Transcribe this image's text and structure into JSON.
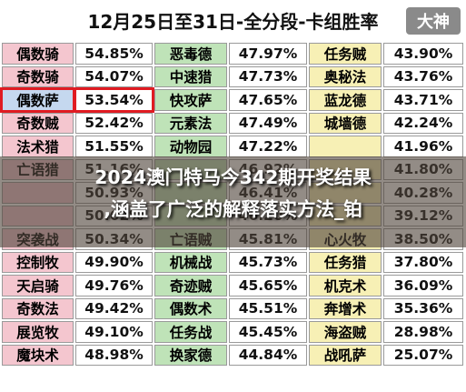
{
  "title": "12月25日至31日-全分段-卡组胜率",
  "logo": "大神",
  "banner": {
    "line1": "2024澳门特马今342期开奖结果",
    "line2": ",涵盖了广泛的解释落实方法_铂"
  },
  "colors": {
    "pink": "#f4c6cf",
    "green": "#bfe3b8",
    "blue": "#c5d8ef",
    "yellow": "#f7f0b5",
    "highlight": "#e01b22"
  },
  "rows": [
    [
      {
        "n": "偶数骑",
        "p": "54.85%",
        "c": "pink"
      },
      {
        "n": "恶毒德",
        "p": "47.97%",
        "c": "green"
      },
      {
        "n": "任务贼",
        "p": "43.90%",
        "c": "yellow"
      }
    ],
    [
      {
        "n": "奇数骑",
        "p": "54.07%",
        "c": "pink"
      },
      {
        "n": "中速猎",
        "p": "47.73%",
        "c": "green"
      },
      {
        "n": "奥秘法",
        "p": "43.76%",
        "c": "yellow"
      }
    ],
    [
      {
        "n": "偶数萨",
        "p": "53.54%",
        "c": "blue"
      },
      {
        "n": "快攻萨",
        "p": "47.65%",
        "c": "green"
      },
      {
        "n": "蓝龙德",
        "p": "43.71%",
        "c": "yellow"
      }
    ],
    [
      {
        "n": "奇数贼",
        "p": "52.42%",
        "c": "pink"
      },
      {
        "n": "元素法",
        "p": "47.49%",
        "c": "green"
      },
      {
        "n": "城墙德",
        "p": "42.24%",
        "c": "yellow"
      }
    ],
    [
      {
        "n": "法术猎",
        "p": "51.55%",
        "c": "pink"
      },
      {
        "n": "动物园",
        "p": "47.22%",
        "c": "green"
      },
      {
        "n": "",
        "p": "41.96%",
        "c": "yellow"
      }
    ],
    [
      {
        "n": "亡语猎",
        "p": "51.16%",
        "c": "pink"
      },
      {
        "n": "",
        "p": "46.92%",
        "c": "green"
      },
      {
        "n": "",
        "p": "41.80%",
        "c": "yellow"
      }
    ],
    [
      {
        "n": "",
        "p": "50.93%",
        "c": "pink"
      },
      {
        "n": "",
        "p": "46.41%",
        "c": "green"
      },
      {
        "n": "",
        "p": "40.28%",
        "c": "yellow"
      }
    ],
    [
      {
        "n": "",
        "p": "50.62%",
        "c": "pink"
      },
      {
        "n": "",
        "p": "46.20%",
        "c": "green"
      },
      {
        "n": "",
        "p": "39.12%",
        "c": "yellow"
      }
    ],
    [
      {
        "n": "突袭战",
        "p": "50.34%",
        "c": "pink"
      },
      {
        "n": "亡语贼",
        "p": "45.81%",
        "c": "green"
      },
      {
        "n": "心火牧",
        "p": "38.50%",
        "c": "yellow"
      }
    ],
    [
      {
        "n": "控制牧",
        "p": "49.90%",
        "c": "pink"
      },
      {
        "n": "机械战",
        "p": "45.73%",
        "c": "green"
      },
      {
        "n": "任务猎",
        "p": "37.80%",
        "c": "yellow"
      }
    ],
    [
      {
        "n": "天启骑",
        "p": "49.76%",
        "c": "pink"
      },
      {
        "n": "奇迹贼",
        "p": "45.65%",
        "c": "green"
      },
      {
        "n": "机克术",
        "p": "36.09%",
        "c": "yellow"
      }
    ],
    [
      {
        "n": "奇数法",
        "p": "49.42%",
        "c": "pink"
      },
      {
        "n": "偶数术",
        "p": "45.51%",
        "c": "green"
      },
      {
        "n": "奔增术",
        "p": "35.36%",
        "c": "yellow"
      }
    ],
    [
      {
        "n": "展览牧",
        "p": "49.10%",
        "c": "pink"
      },
      {
        "n": "任务战",
        "p": "45.45%",
        "c": "green"
      },
      {
        "n": "海盗贼",
        "p": "28.98%",
        "c": "yellow"
      }
    ],
    [
      {
        "n": "魔块术",
        "p": "48.98%",
        "c": "pink"
      },
      {
        "n": "换家德",
        "p": "44.84%",
        "c": "green"
      },
      {
        "n": "战吼萨",
        "p": "25.07%",
        "c": "yellow"
      }
    ]
  ]
}
